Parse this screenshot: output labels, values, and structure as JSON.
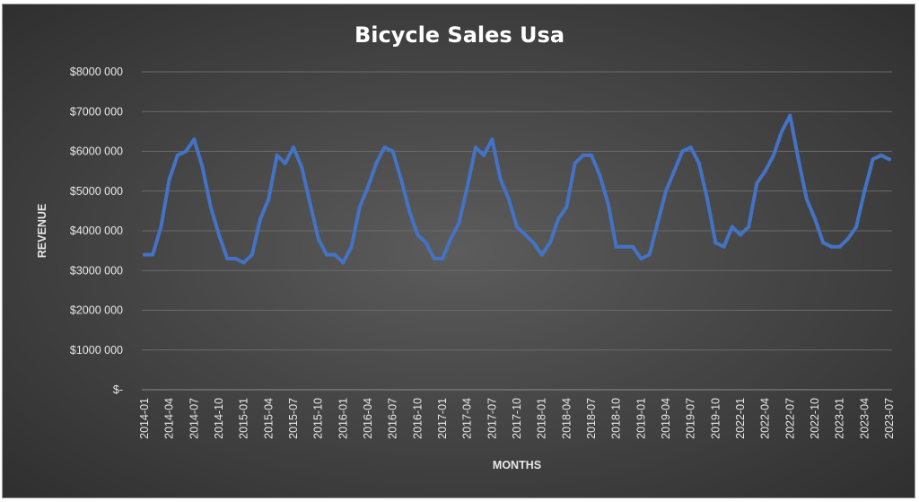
{
  "chart_data": {
    "type": "line",
    "title": "Bicycle Sales Usa",
    "xlabel": "MONTHS",
    "ylabel": "REVENUE",
    "ylim": [
      0,
      8000000
    ],
    "y_ticks": [
      0,
      1000000,
      2000000,
      3000000,
      4000000,
      5000000,
      6000000,
      7000000,
      8000000
    ],
    "y_tick_labels": [
      "$-",
      "$1000 000",
      "$2000 000",
      "$3000 000",
      "$4000 000",
      "$5000 000",
      "$6000 000",
      "$7000 000",
      "$8000 000"
    ],
    "grid": true,
    "legend": "none",
    "line_color": "#4472C4",
    "x": [
      "2014-01",
      "2014-02",
      "2014-03",
      "2014-04",
      "2014-05",
      "2014-06",
      "2014-07",
      "2014-08",
      "2014-09",
      "2014-10",
      "2014-11",
      "2014-12",
      "2015-01",
      "2015-02",
      "2015-03",
      "2015-04",
      "2015-05",
      "2015-06",
      "2015-07",
      "2015-08",
      "2015-09",
      "2015-10",
      "2015-11",
      "2015-12",
      "2016-01",
      "2016-02",
      "2016-03",
      "2016-04",
      "2016-05",
      "2016-06",
      "2016-07",
      "2016-08",
      "2016-09",
      "2016-10",
      "2016-11",
      "2016-12",
      "2017-01",
      "2017-02",
      "2017-03",
      "2017-04",
      "2017-05",
      "2017-06",
      "2017-07",
      "2017-08",
      "2017-09",
      "2017-10",
      "2017-11",
      "2017-12",
      "2018-01",
      "2018-02",
      "2018-03",
      "2018-04",
      "2018-05",
      "2018-06",
      "2018-07",
      "2018-08",
      "2018-09",
      "2018-10",
      "2018-11",
      "2018-12",
      "2019-01",
      "2019-02",
      "2019-03",
      "2019-04",
      "2019-05",
      "2019-06",
      "2019-07",
      "2019-08",
      "2019-09",
      "2019-10",
      "2019-11",
      "2019-12",
      "2022-01",
      "2022-02",
      "2022-03",
      "2022-04",
      "2022-05",
      "2022-06",
      "2022-07",
      "2022-08",
      "2022-09",
      "2022-10",
      "2022-11",
      "2022-12",
      "2023-01",
      "2023-02",
      "2023-03",
      "2023-04",
      "2023-05",
      "2023-06",
      "2023-07"
    ],
    "tick_labels": [
      "2014-01",
      "2014-04",
      "2014-07",
      "2014-10",
      "2015-01",
      "2015-04",
      "2015-07",
      "2015-10",
      "2016-01",
      "2016-04",
      "2016-07",
      "2016-10",
      "2017-01",
      "2017-04",
      "2017-07",
      "2017-10",
      "2018-01",
      "2018-04",
      "2018-07",
      "2018-10",
      "2019-01",
      "2019-04",
      "2019-07",
      "2019-10",
      "2022-01",
      "2022-04",
      "2022-07",
      "2022-10",
      "2023-01",
      "2023-04",
      "2023-07"
    ],
    "series": [
      {
        "values": [
          3400000,
          3400000,
          4100000,
          5300000,
          5900000,
          6000000,
          6300000,
          5600000,
          4600000,
          3900000,
          3300000,
          3300000,
          3200000,
          3400000,
          4300000,
          4800000,
          5900000,
          5700000,
          6100000,
          5600000,
          4700000,
          3800000,
          3400000,
          3400000,
          3200000,
          3600000,
          4600000,
          5100000,
          5700000,
          6100000,
          6000000,
          5300000,
          4500000,
          3900000,
          3700000,
          3300000,
          3300000,
          3800000,
          4200000,
          5100000,
          6100000,
          5900000,
          6300000,
          5300000,
          4800000,
          4100000,
          3900000,
          3700000,
          3400000,
          3700000,
          4300000,
          4600000,
          5700000,
          5900000,
          5900000,
          5400000,
          4700000,
          3600000,
          3600000,
          3600000,
          3300000,
          3400000,
          4200000,
          5000000,
          5500000,
          6000000,
          6100000,
          5700000,
          4800000,
          3700000,
          3600000,
          4100000,
          3900000,
          4100000,
          5200000,
          5500000,
          5900000,
          6500000,
          6900000,
          5800000,
          4800000,
          4300000,
          3700000,
          3600000,
          3600000,
          3800000,
          4100000,
          5000000,
          5800000,
          5900000,
          5800000
        ]
      }
    ]
  }
}
